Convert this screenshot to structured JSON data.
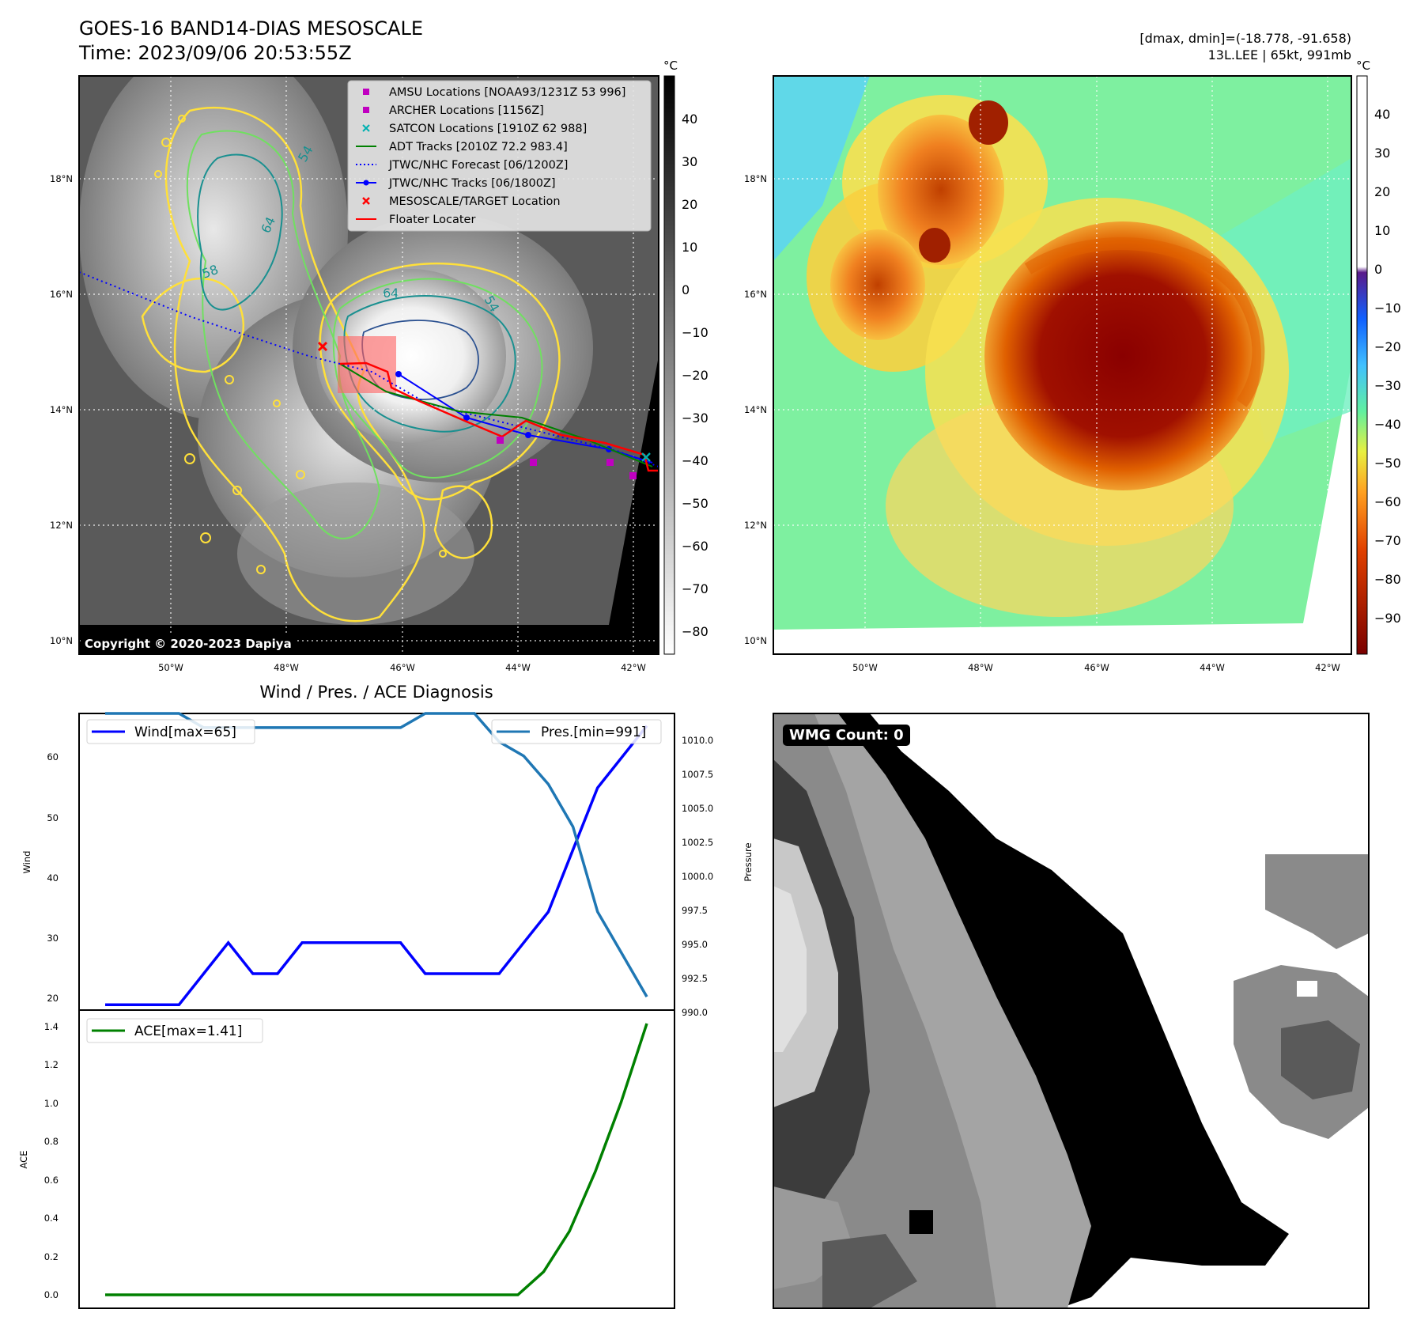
{
  "header": {
    "title": "GOES-16 BAND14-DIAS MESOSCALE",
    "time": "Time: 2023/09/06 20:53:55Z",
    "dmax_dmin": "[dmax, dmin]=(-18.778, -91.658)",
    "storm": "13L.LEE | 65kt, 991mb"
  },
  "map": {
    "lat_ticks": [
      "18°N",
      "16°N",
      "14°N",
      "12°N",
      "10°N"
    ],
    "lon_ticks": [
      "50°W",
      "48°W",
      "46°W",
      "44°W",
      "42°W"
    ],
    "copyright": "Copyright © 2020-2023 Dapiya",
    "contour_labels": [
      "54",
      "64",
      "58",
      "64",
      "54"
    ],
    "legend": [
      {
        "label": "AMSU Locations [NOAA93/1231Z 53 996]",
        "color": "#c000c0",
        "marker": "square"
      },
      {
        "label": "ARCHER Locations [1156Z]",
        "color": "#c000c0",
        "marker": "square"
      },
      {
        "label": "SATCON Locations [1910Z 62 988]",
        "color": "#00b0b0",
        "marker": "x"
      },
      {
        "label": "ADT Tracks [2010Z 72.2 983.4]",
        "color": "#008000",
        "marker": "line"
      },
      {
        "label": "JTWC/NHC Forecast [06/1200Z]",
        "color": "#0000ff",
        "marker": "dotted"
      },
      {
        "label": "JTWC/NHC Tracks [06/1800Z]",
        "color": "#0000ff",
        "marker": "line-dot"
      },
      {
        "label": "MESOSCALE/TARGET Location",
        "color": "#ff0000",
        "marker": "x"
      },
      {
        "label": "Floater Locater",
        "color": "#ff0000",
        "marker": "line"
      }
    ]
  },
  "colorbars": {
    "unit": "°C",
    "gray_ticks": [
      "40",
      "30",
      "20",
      "10",
      "0",
      "−10",
      "−20",
      "−30",
      "−40",
      "−50",
      "−60",
      "−70",
      "−80"
    ],
    "color_ticks": [
      "40",
      "30",
      "20",
      "10",
      "0",
      "−10",
      "−20",
      "−30",
      "−40",
      "−50",
      "−60",
      "−70",
      "−80",
      "−90"
    ]
  },
  "diagnosis": {
    "title": "Wind / Pres. / ACE Diagnosis",
    "wind_ylabel": "Wind",
    "pres_ylabel": "Pressure",
    "ace_ylabel": "ACE",
    "wind_ticks": [
      "60",
      "50",
      "40",
      "30",
      "20"
    ],
    "pres_ticks": [
      "1010.0",
      "1007.5",
      "1005.0",
      "1002.5",
      "1000.0",
      "997.5",
      "995.0",
      "992.5",
      "990.0"
    ],
    "ace_ticks": [
      "1.4",
      "1.2",
      "1.0",
      "0.8",
      "0.6",
      "0.4",
      "0.2",
      "0.0"
    ],
    "wmg_count": "WMG Count: 0"
  },
  "chart_data": [
    {
      "type": "line",
      "title": "Wind / Pres. / ACE Diagnosis",
      "ylabel": "Wind",
      "ylim": [
        19,
        67
      ],
      "series": [
        {
          "name": "Wind[max=65]",
          "color": "#0000ff",
          "values": [
            20,
            20,
            20,
            20,
            25,
            30,
            25,
            25,
            30,
            30,
            30,
            30,
            30,
            25,
            25,
            25,
            25,
            30,
            35,
            45,
            55,
            60,
            65
          ]
        }
      ]
    },
    {
      "type": "line",
      "ylabel": "Pressure",
      "ylim": [
        990,
        1011
      ],
      "series": [
        {
          "name": "Pres.[min=991]",
          "color": "#1f77b4",
          "values": [
            1011,
            1011,
            1011,
            1011,
            1010,
            1010,
            1010,
            1010,
            1010,
            1010,
            1010,
            1010,
            1010,
            1011,
            1011,
            1011,
            1009,
            1008,
            1006,
            1003,
            997,
            994,
            991
          ]
        }
      ]
    },
    {
      "type": "line",
      "ylabel": "ACE",
      "ylim": [
        -0.07,
        1.48
      ],
      "series": [
        {
          "name": "ACE[max=1.41]",
          "color": "#008000",
          "values": [
            0,
            0,
            0,
            0,
            0,
            0,
            0,
            0,
            0,
            0,
            0,
            0,
            0,
            0,
            0,
            0,
            0,
            0.12,
            0.33,
            0.64,
            1.0,
            1.41
          ]
        }
      ]
    }
  ]
}
